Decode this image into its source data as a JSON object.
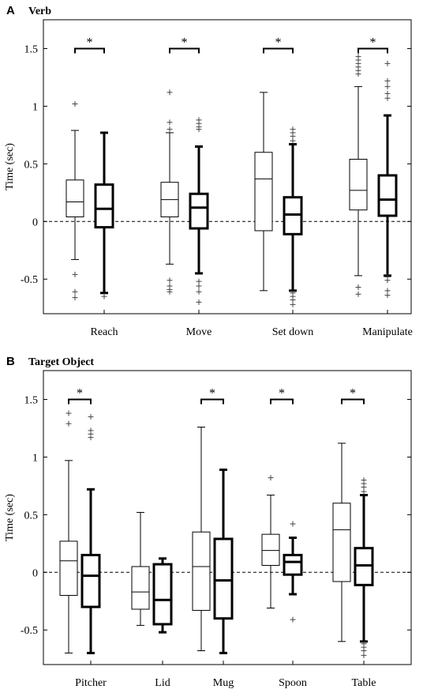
{
  "chart_data": [
    {
      "type": "box",
      "letter": "A",
      "title": "Verb",
      "ylabel": "Time (sec)",
      "ylim": [
        -0.8,
        1.75
      ],
      "yticks": [
        -0.5,
        0,
        0.5,
        1,
        1.5
      ],
      "ytick_labels": [
        "-0.5",
        "0",
        "0.5",
        "1",
        "1.5"
      ],
      "reference_line": 0,
      "categories": [
        "Reach",
        "Move",
        "Set down",
        "Manipulate"
      ],
      "groups": [
        {
          "label": "Reach",
          "significant": true,
          "star": "*",
          "boxes": [
            {
              "style": "thin",
              "whisker_low": -0.33,
              "q1": 0.04,
              "median": 0.17,
              "q3": 0.36,
              "whisker_high": 0.79,
              "outliers": [
                1.02,
                -0.46,
                -0.61,
                -0.66
              ]
            },
            {
              "style": "thick",
              "whisker_low": -0.62,
              "q1": -0.05,
              "median": 0.11,
              "q3": 0.32,
              "whisker_high": 0.77,
              "outliers": [
                -0.65
              ]
            }
          ]
        },
        {
          "label": "Move",
          "significant": true,
          "star": "*",
          "boxes": [
            {
              "style": "thin",
              "whisker_low": -0.37,
              "q1": 0.04,
              "median": 0.19,
              "q3": 0.34,
              "whisker_high": 0.77,
              "outliers": [
                1.12,
                0.86,
                0.8,
                -0.51,
                -0.56,
                -0.59,
                -0.61
              ]
            },
            {
              "style": "thick",
              "whisker_low": -0.45,
              "q1": -0.06,
              "median": 0.12,
              "q3": 0.24,
              "whisker_high": 0.65,
              "outliers": [
                0.88,
                0.85,
                0.82,
                0.8,
                -0.52,
                -0.56,
                -0.61,
                -0.7
              ]
            }
          ]
        },
        {
          "label": "Set down",
          "significant": true,
          "star": "*",
          "boxes": [
            {
              "style": "thin",
              "whisker_low": -0.6,
              "q1": -0.08,
              "median": 0.37,
              "q3": 0.6,
              "whisker_high": 1.12,
              "outliers": []
            },
            {
              "style": "thick",
              "whisker_low": -0.6,
              "q1": -0.11,
              "median": 0.06,
              "q3": 0.21,
              "whisker_high": 0.67,
              "outliers": [
                0.8,
                0.77,
                0.74,
                0.7,
                -0.62,
                -0.65,
                -0.68,
                -0.72
              ]
            }
          ]
        },
        {
          "label": "Manipulate",
          "significant": true,
          "star": "*",
          "boxes": [
            {
              "style": "thin",
              "whisker_low": -0.47,
              "q1": 0.1,
              "median": 0.27,
              "q3": 0.54,
              "whisker_high": 1.17,
              "outliers": [
                1.43,
                1.4,
                1.37,
                1.34,
                1.31,
                1.28,
                -0.57,
                -0.63
              ]
            },
            {
              "style": "thick",
              "whisker_low": -0.47,
              "q1": 0.05,
              "median": 0.19,
              "q3": 0.4,
              "whisker_high": 0.92,
              "outliers": [
                1.37,
                1.22,
                1.17,
                1.11,
                1.07,
                -0.48,
                -0.51,
                -0.6,
                -0.64
              ]
            }
          ]
        }
      ]
    },
    {
      "type": "box",
      "letter": "B",
      "title": "Target Object",
      "ylabel": "Time (sec)",
      "ylim": [
        -0.8,
        1.75
      ],
      "yticks": [
        -0.5,
        0,
        0.5,
        1,
        1.5
      ],
      "ytick_labels": [
        "-0.5",
        "0",
        "0.5",
        "1",
        "1.5"
      ],
      "reference_line": 0,
      "categories": [
        "Pitcher",
        "Lid",
        "Mug",
        "Spoon",
        "Table"
      ],
      "groups": [
        {
          "label": "Pitcher",
          "significant": true,
          "star": "*",
          "boxes": [
            {
              "style": "thin",
              "whisker_low": -0.7,
              "q1": -0.2,
              "median": 0.1,
              "q3": 0.27,
              "whisker_high": 0.97,
              "outliers": [
                1.38,
                1.29
              ]
            },
            {
              "style": "thick",
              "whisker_low": -0.7,
              "q1": -0.3,
              "median": -0.03,
              "q3": 0.15,
              "whisker_high": 0.72,
              "outliers": [
                1.35,
                1.23,
                1.2,
                1.17
              ]
            }
          ]
        },
        {
          "label": "Lid",
          "significant": false,
          "star": "",
          "boxes": [
            {
              "style": "thin",
              "whisker_low": -0.46,
              "q1": -0.32,
              "median": -0.17,
              "q3": 0.05,
              "whisker_high": 0.52,
              "outliers": []
            },
            {
              "style": "thick",
              "whisker_low": -0.52,
              "q1": -0.45,
              "median": -0.24,
              "q3": 0.07,
              "whisker_high": 0.12,
              "outliers": []
            }
          ]
        },
        {
          "label": "Mug",
          "significant": true,
          "star": "*",
          "boxes": [
            {
              "style": "thin",
              "whisker_low": -0.68,
              "q1": -0.33,
              "median": 0.05,
              "q3": 0.35,
              "whisker_high": 1.26,
              "outliers": []
            },
            {
              "style": "thick",
              "whisker_low": -0.7,
              "q1": -0.4,
              "median": -0.07,
              "q3": 0.29,
              "whisker_high": 0.89,
              "outliers": []
            }
          ]
        },
        {
          "label": "Spoon",
          "significant": true,
          "star": "*",
          "boxes": [
            {
              "style": "thin",
              "whisker_low": -0.31,
              "q1": 0.06,
              "median": 0.19,
              "q3": 0.33,
              "whisker_high": 0.67,
              "outliers": [
                0.82
              ]
            },
            {
              "style": "thick",
              "whisker_low": -0.19,
              "q1": -0.02,
              "median": 0.09,
              "q3": 0.15,
              "whisker_high": 0.3,
              "outliers": [
                0.42,
                -0.41
              ]
            }
          ]
        },
        {
          "label": "Table",
          "significant": true,
          "star": "*",
          "boxes": [
            {
              "style": "thin",
              "whisker_low": -0.6,
              "q1": -0.08,
              "median": 0.37,
              "q3": 0.6,
              "whisker_high": 1.12,
              "outliers": []
            },
            {
              "style": "thick",
              "whisker_low": -0.6,
              "q1": -0.11,
              "median": 0.06,
              "q3": 0.21,
              "whisker_high": 0.67,
              "outliers": [
                0.8,
                0.77,
                0.74,
                0.7,
                -0.62,
                -0.65,
                -0.68,
                -0.72
              ]
            }
          ]
        }
      ]
    }
  ]
}
